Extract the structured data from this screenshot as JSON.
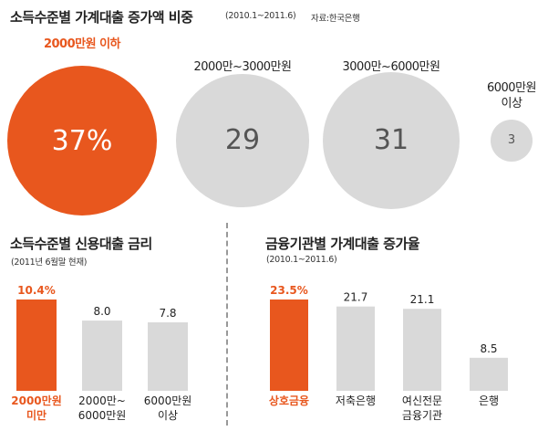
{
  "colors": {
    "accent": "#e8571e",
    "gray": "#d9d9d9",
    "text": "#222222",
    "circle_text": "#555555"
  },
  "section1": {
    "title": "소득수준별 가계대출 증가액 비중",
    "period": "(2010.1~2011.6)",
    "source": "자료:한국은행"
  },
  "section2": {
    "title": "소득수준별 신용대출 금리",
    "note": "(2011년 6월말 현재)"
  },
  "section3": {
    "title": "금융기관별 가계대출 증가율",
    "note": "(2010.1~2011.6)"
  },
  "chart_data": [
    {
      "type": "bubble",
      "title": "소득수준별 가계대출 증가액 비중",
      "categories": [
        "2000만원 이하",
        "2000만~3000만원",
        "3000만~6000만원",
        "6000만원 이상"
      ],
      "values": [
        37,
        29,
        31,
        3
      ],
      "value_labels": [
        "37%",
        "29",
        "31",
        "3"
      ],
      "highlight_index": 0
    },
    {
      "type": "bar",
      "title": "소득수준별 신용대출 금리",
      "categories": [
        "2000만원\n미만",
        "2000만~\n6000만원",
        "6000만원\n이상"
      ],
      "values": [
        10.4,
        8.0,
        7.8
      ],
      "value_labels": [
        "10.4%",
        "8.0",
        "7.8"
      ],
      "highlight_index": 0
    },
    {
      "type": "bar",
      "title": "금융기관별 가계대출 증가율",
      "categories": [
        "상호금융",
        "저축은행",
        "여신전문\n금융기관",
        "은행"
      ],
      "values": [
        23.5,
        21.7,
        21.1,
        8.5
      ],
      "value_labels": [
        "23.5%",
        "21.7",
        "21.1",
        "8.5"
      ],
      "highlight_index": 0
    }
  ]
}
